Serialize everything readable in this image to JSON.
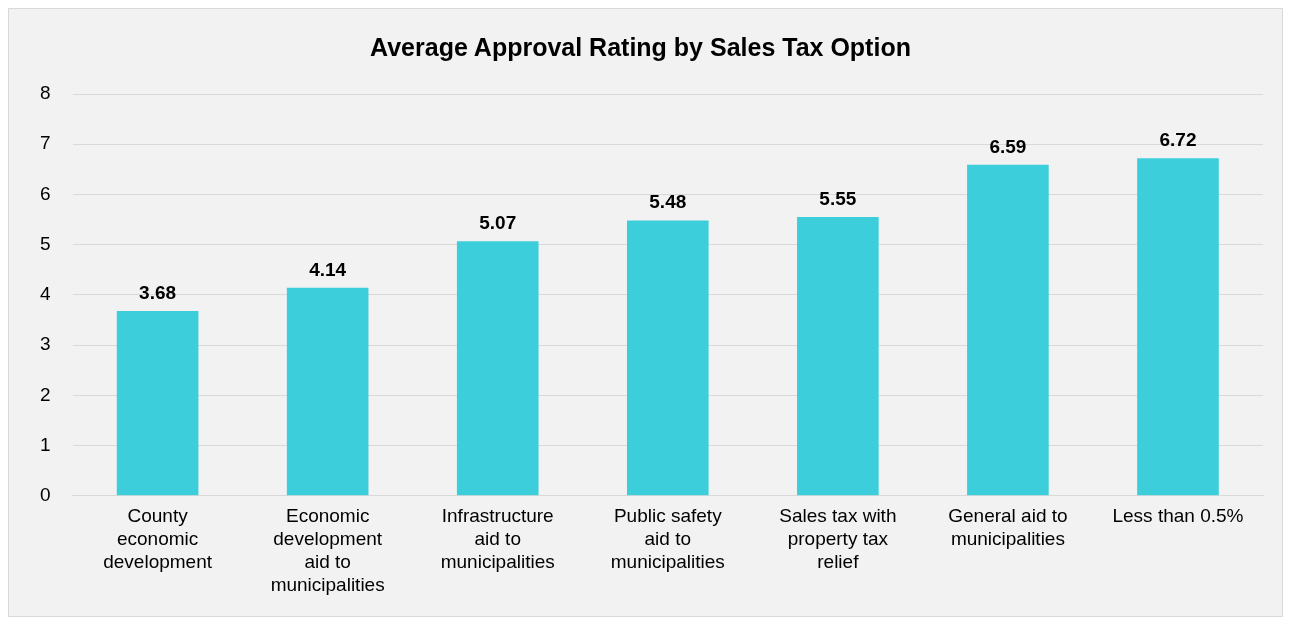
{
  "chart_data": {
    "type": "bar",
    "title": "Average Approval Rating by Sales Tax Option",
    "categories": [
      "County economic development",
      "Economic development aid to municipalities",
      "Infrastructure aid to municipalities",
      "Public safety aid to municipalities",
      "Sales tax with property tax relief",
      "General aid to municipalities",
      "Less than 0.5%"
    ],
    "values": [
      3.68,
      4.14,
      5.07,
      5.48,
      5.55,
      6.59,
      6.72
    ],
    "color": "#3ccfdb",
    "ylim": [
      0,
      8
    ],
    "yticks": [
      0,
      1,
      2,
      3,
      4,
      5,
      6,
      7,
      8
    ],
    "grid": "y",
    "data_labels": true,
    "legend": false
  }
}
